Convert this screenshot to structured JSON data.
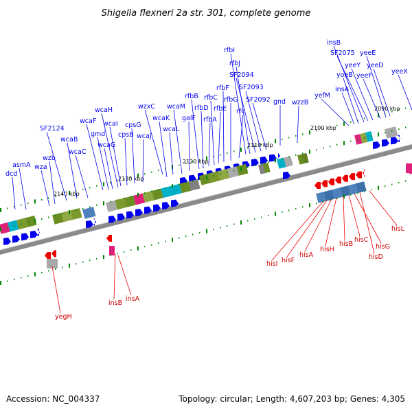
{
  "title": "Shigella flexneri 2a str. 301, complete genome",
  "footer": {
    "accession": "Accession: NC_004337",
    "summary": "Topology: circular; Length: 4,607,203 bp; Genes: 4,305"
  },
  "colors": {
    "plus": "#0000ee",
    "minus": "#ee0000",
    "backbone": "#8a8a8a",
    "tickmark": "#008800"
  },
  "ticks": [
    "2090 kbp",
    "2100 kbp",
    "2110 kbp",
    "2120 kbp",
    "2130 kbp",
    "2140 kbp"
  ],
  "plus_genes": [
    "dcd",
    "asmA",
    "wza",
    "wzb",
    "SF2124",
    "wcaB",
    "wcaC",
    "wcaF",
    "gmd",
    "wcaG",
    "wcaH",
    "wcaI",
    "cpsB",
    "cpsG",
    "wcaJ",
    "wzxC",
    "wcaK",
    "wcaL",
    "wcaM",
    "galF",
    "rfbB",
    "rfbD",
    "rfbA",
    "rfbC",
    "rfbE",
    "rfbF",
    "rfbG",
    "rfc",
    "rfbI",
    "rfbJ",
    "SF2094",
    "SF2093",
    "SF2092",
    "gnd",
    "wzzB",
    "yefM",
    "insA",
    "yoeB",
    "insB",
    "SF2075",
    "yeeY",
    "yeeF",
    "yeeE",
    "yeeD",
    "yeeX"
  ],
  "minus_genes": [
    "yegH",
    "insB",
    "insA",
    "hisI",
    "hisF",
    "hisA",
    "hisH",
    "hisB",
    "hisC",
    "hisG",
    "hisD",
    "hisL"
  ]
}
